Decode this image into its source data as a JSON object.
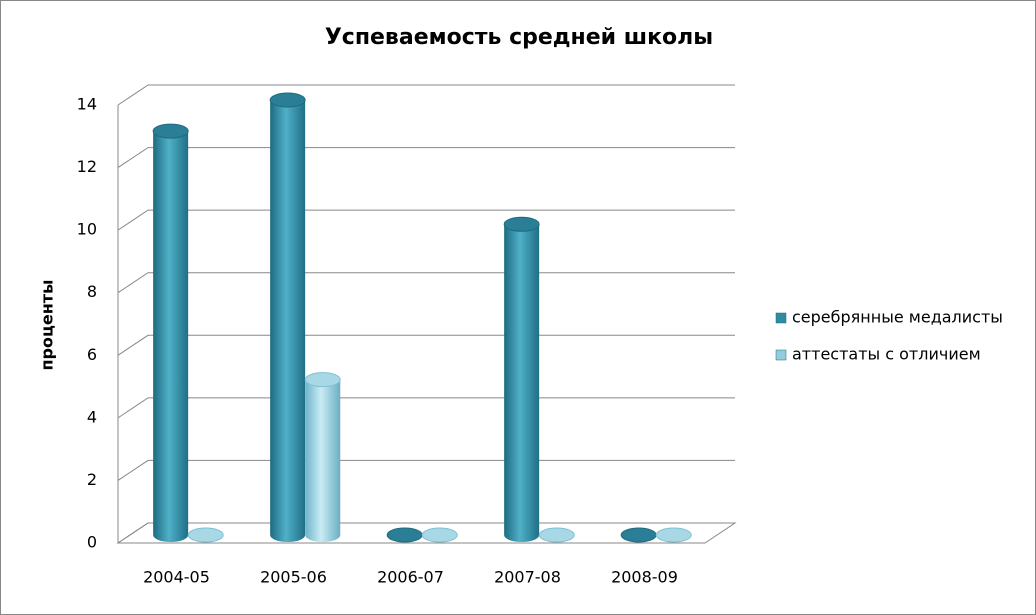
{
  "chart_data": {
    "type": "bar3d",
    "title": "Успеваемость  средней школы",
    "y_label": "проценты",
    "categories": [
      "2004-05",
      "2005-06",
      "2006-07",
      "2007-08",
      "2008-09"
    ],
    "series": [
      {
        "name": "серебрянные медалисты",
        "color": "#2f8aa2",
        "values": [
          13,
          14,
          0,
          10,
          0
        ]
      },
      {
        "name": "аттестаты с отличием",
        "color": "#93cddd",
        "values": [
          0,
          5,
          0,
          0,
          0
        ]
      }
    ],
    "ylim": [
      0,
      14
    ],
    "yticks": [
      0,
      2,
      4,
      6,
      8,
      10,
      12,
      14
    ],
    "grid": true,
    "legend": "right"
  }
}
